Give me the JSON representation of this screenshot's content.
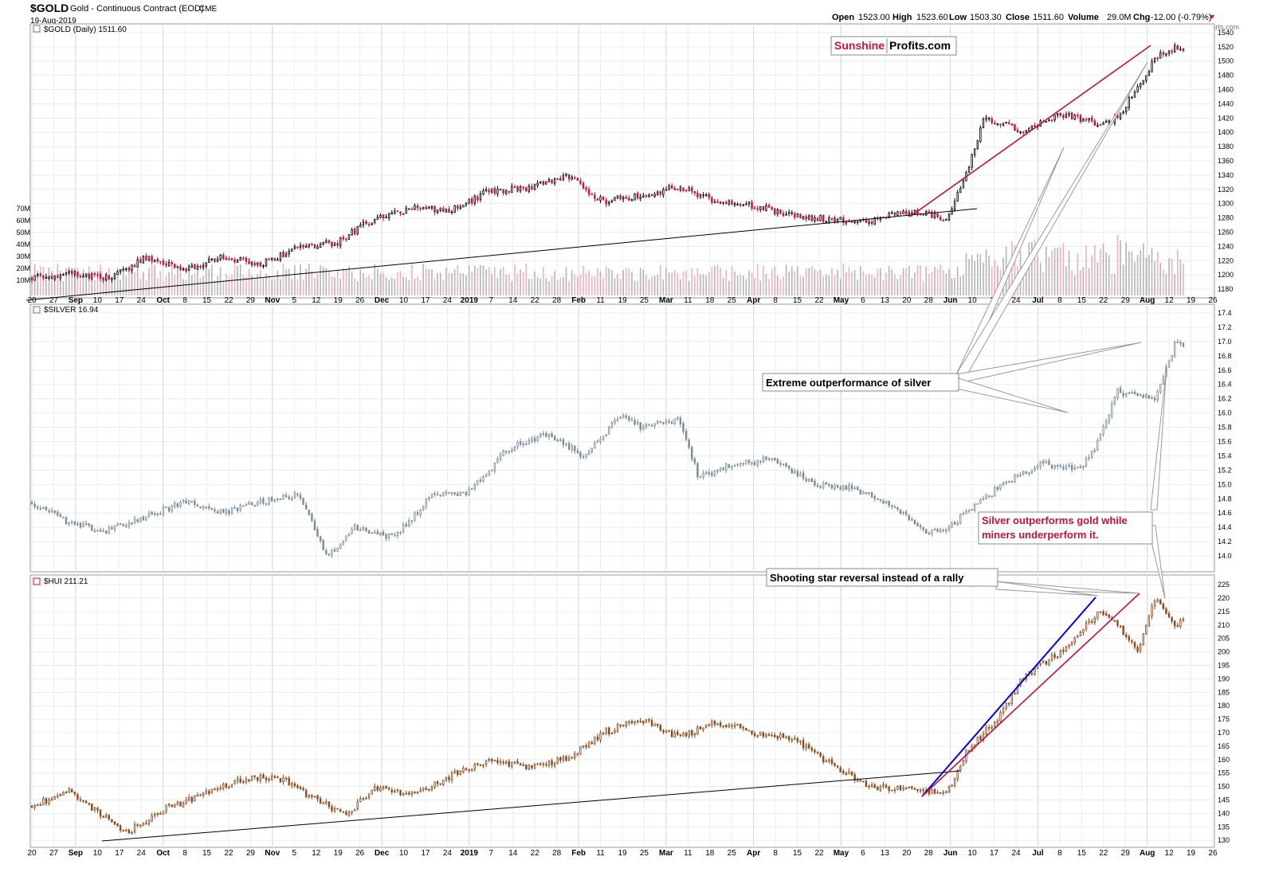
{
  "header": {
    "symbol": "$GOLD",
    "description": "Gold - Continuous Contract (EOD)",
    "exchange": "CME",
    "date": "19-Aug-2019",
    "open_label": "Open",
    "open": "1523.00",
    "high_label": "High",
    "high": "1523.60",
    "low_label": "Low",
    "low": "1503.30",
    "close_label": "Close",
    "close": "1511.60",
    "volume_label": "Volume",
    "volume": "29.0M",
    "chg_label": "Chg",
    "chg": "-12.00 (-0.79%)",
    "credit": "© StockCharts.com"
  },
  "logo": {
    "part1": "Sunshine",
    "part2": "Profits.com"
  },
  "colors": {
    "up": "#000000",
    "down": "#d0103a",
    "silver": "#7a8c99",
    "hui": "#8b4a1e",
    "trend_red": "#c8103a",
    "trend_blue": "#0000ee"
  },
  "x_axis": {
    "labels": [
      "20",
      "27",
      "Sep",
      "10",
      "17",
      "24",
      "Oct",
      "8",
      "15",
      "22",
      "29",
      "Nov",
      "5",
      "12",
      "19",
      "26",
      "Dec",
      "10",
      "17",
      "24",
      "2019",
      "7",
      "14",
      "22",
      "28",
      "Feb",
      "11",
      "19",
      "25",
      "Mar",
      "11",
      "18",
      "25",
      "Apr",
      "8",
      "15",
      "22",
      "May",
      "6",
      "13",
      "20",
      "28",
      "Jun",
      "10",
      "17",
      "24",
      "Jul",
      "8",
      "15",
      "22",
      "29",
      "Aug",
      "12",
      "19",
      "26"
    ],
    "bold": [
      "Sep",
      "Oct",
      "Nov",
      "Dec",
      "2019",
      "Feb",
      "Mar",
      "Apr",
      "May",
      "Jun",
      "Jul",
      "Aug"
    ]
  },
  "annotations": {
    "extreme": "Extreme outperformance of silver",
    "silver_out_1": "Silver outperforms gold while",
    "silver_out_2": "miners underperform it.",
    "shooting_star": "Shooting star reversal instead of a rally"
  },
  "chart_data": [
    {
      "type": "candlestick",
      "panel": "gold",
      "title": "$GOLD (Daily) 1511.60",
      "ylim": [
        1170,
        1550
      ],
      "y_ticks": [
        1180,
        1200,
        1220,
        1240,
        1260,
        1280,
        1300,
        1320,
        1340,
        1360,
        1380,
        1400,
        1420,
        1440,
        1460,
        1480,
        1500,
        1520,
        1540
      ],
      "volume_ticks": [
        "10M",
        "20M",
        "30M",
        "40M",
        "50M",
        "60M",
        "70M"
      ],
      "anchors": [
        [
          0,
          1195
        ],
        [
          20,
          1202
        ],
        [
          40,
          1196
        ],
        [
          60,
          1224
        ],
        [
          80,
          1206
        ],
        [
          100,
          1226
        ],
        [
          120,
          1215
        ],
        [
          140,
          1238
        ],
        [
          160,
          1245
        ],
        [
          180,
          1280
        ],
        [
          200,
          1293
        ],
        [
          220,
          1290
        ],
        [
          240,
          1318
        ],
        [
          260,
          1322
        ],
        [
          280,
          1340
        ],
        [
          300,
          1303
        ],
        [
          320,
          1312
        ],
        [
          340,
          1323
        ],
        [
          360,
          1302
        ],
        [
          380,
          1297
        ],
        [
          400,
          1282
        ],
        [
          420,
          1278
        ],
        [
          440,
          1275
        ],
        [
          460,
          1290
        ],
        [
          470,
          1284
        ],
        [
          480,
          1280
        ],
        [
          490,
          1335
        ],
        [
          500,
          1420
        ],
        [
          520,
          1402
        ],
        [
          540,
          1425
        ],
        [
          560,
          1413
        ],
        [
          570,
          1420
        ],
        [
          580,
          1460
        ],
        [
          590,
          1505
        ],
        [
          600,
          1520
        ],
        [
          605,
          1511.6
        ]
      ],
      "seed": 7
    },
    {
      "type": "candlestick",
      "panel": "silver",
      "title": "$SILVER 16.94",
      "ylim": [
        13.8,
        17.5
      ],
      "y_ticks": [
        14.0,
        14.2,
        14.4,
        14.6,
        14.8,
        15.0,
        15.2,
        15.4,
        15.6,
        15.8,
        16.0,
        16.2,
        16.4,
        16.6,
        16.8,
        17.0,
        17.2,
        17.4
      ],
      "anchors": [
        [
          0,
          14.75
        ],
        [
          20,
          14.45
        ],
        [
          40,
          14.35
        ],
        [
          60,
          14.55
        ],
        [
          80,
          14.75
        ],
        [
          100,
          14.6
        ],
        [
          120,
          14.75
        ],
        [
          140,
          14.85
        ],
        [
          155,
          14.0
        ],
        [
          170,
          14.4
        ],
        [
          190,
          14.25
        ],
        [
          210,
          14.85
        ],
        [
          230,
          14.9
        ],
        [
          250,
          15.5
        ],
        [
          270,
          15.7
        ],
        [
          290,
          15.4
        ],
        [
          310,
          16.0
        ],
        [
          320,
          15.8
        ],
        [
          340,
          15.9
        ],
        [
          350,
          15.1
        ],
        [
          370,
          15.3
        ],
        [
          390,
          15.35
        ],
        [
          410,
          15.0
        ],
        [
          430,
          14.95
        ],
        [
          450,
          14.75
        ],
        [
          470,
          14.35
        ],
        [
          480,
          14.35
        ],
        [
          490,
          14.6
        ],
        [
          510,
          15.0
        ],
        [
          530,
          15.3
        ],
        [
          550,
          15.2
        ],
        [
          560,
          15.6
        ],
        [
          570,
          16.3
        ],
        [
          590,
          16.2
        ],
        [
          600,
          16.95
        ],
        [
          605,
          16.94
        ]
      ],
      "seed": 13
    },
    {
      "type": "candlestick",
      "panel": "hui",
      "title": "$HUI 211.21",
      "ylim": [
        128,
        228
      ],
      "y_ticks": [
        130,
        135,
        140,
        145,
        150,
        155,
        160,
        165,
        170,
        175,
        180,
        185,
        190,
        195,
        200,
        205,
        210,
        215,
        220,
        225
      ],
      "anchors": [
        [
          0,
          143
        ],
        [
          20,
          148
        ],
        [
          35,
          140
        ],
        [
          50,
          133
        ],
        [
          70,
          142
        ],
        [
          90,
          147
        ],
        [
          110,
          153
        ],
        [
          130,
          153
        ],
        [
          150,
          145
        ],
        [
          165,
          139
        ],
        [
          180,
          150
        ],
        [
          200,
          147
        ],
        [
          220,
          154
        ],
        [
          240,
          160
        ],
        [
          260,
          157
        ],
        [
          280,
          160
        ],
        [
          300,
          170
        ],
        [
          320,
          175
        ],
        [
          340,
          168
        ],
        [
          360,
          174
        ],
        [
          380,
          170
        ],
        [
          400,
          168
        ],
        [
          420,
          158
        ],
        [
          440,
          150
        ],
        [
          460,
          149
        ],
        [
          480,
          147
        ],
        [
          490,
          162
        ],
        [
          510,
          178
        ],
        [
          520,
          190
        ],
        [
          540,
          200
        ],
        [
          560,
          215
        ],
        [
          570,
          210
        ],
        [
          580,
          200
        ],
        [
          590,
          220
        ],
        [
          600,
          210
        ],
        [
          605,
          211.21
        ]
      ],
      "seed": 21
    }
  ]
}
